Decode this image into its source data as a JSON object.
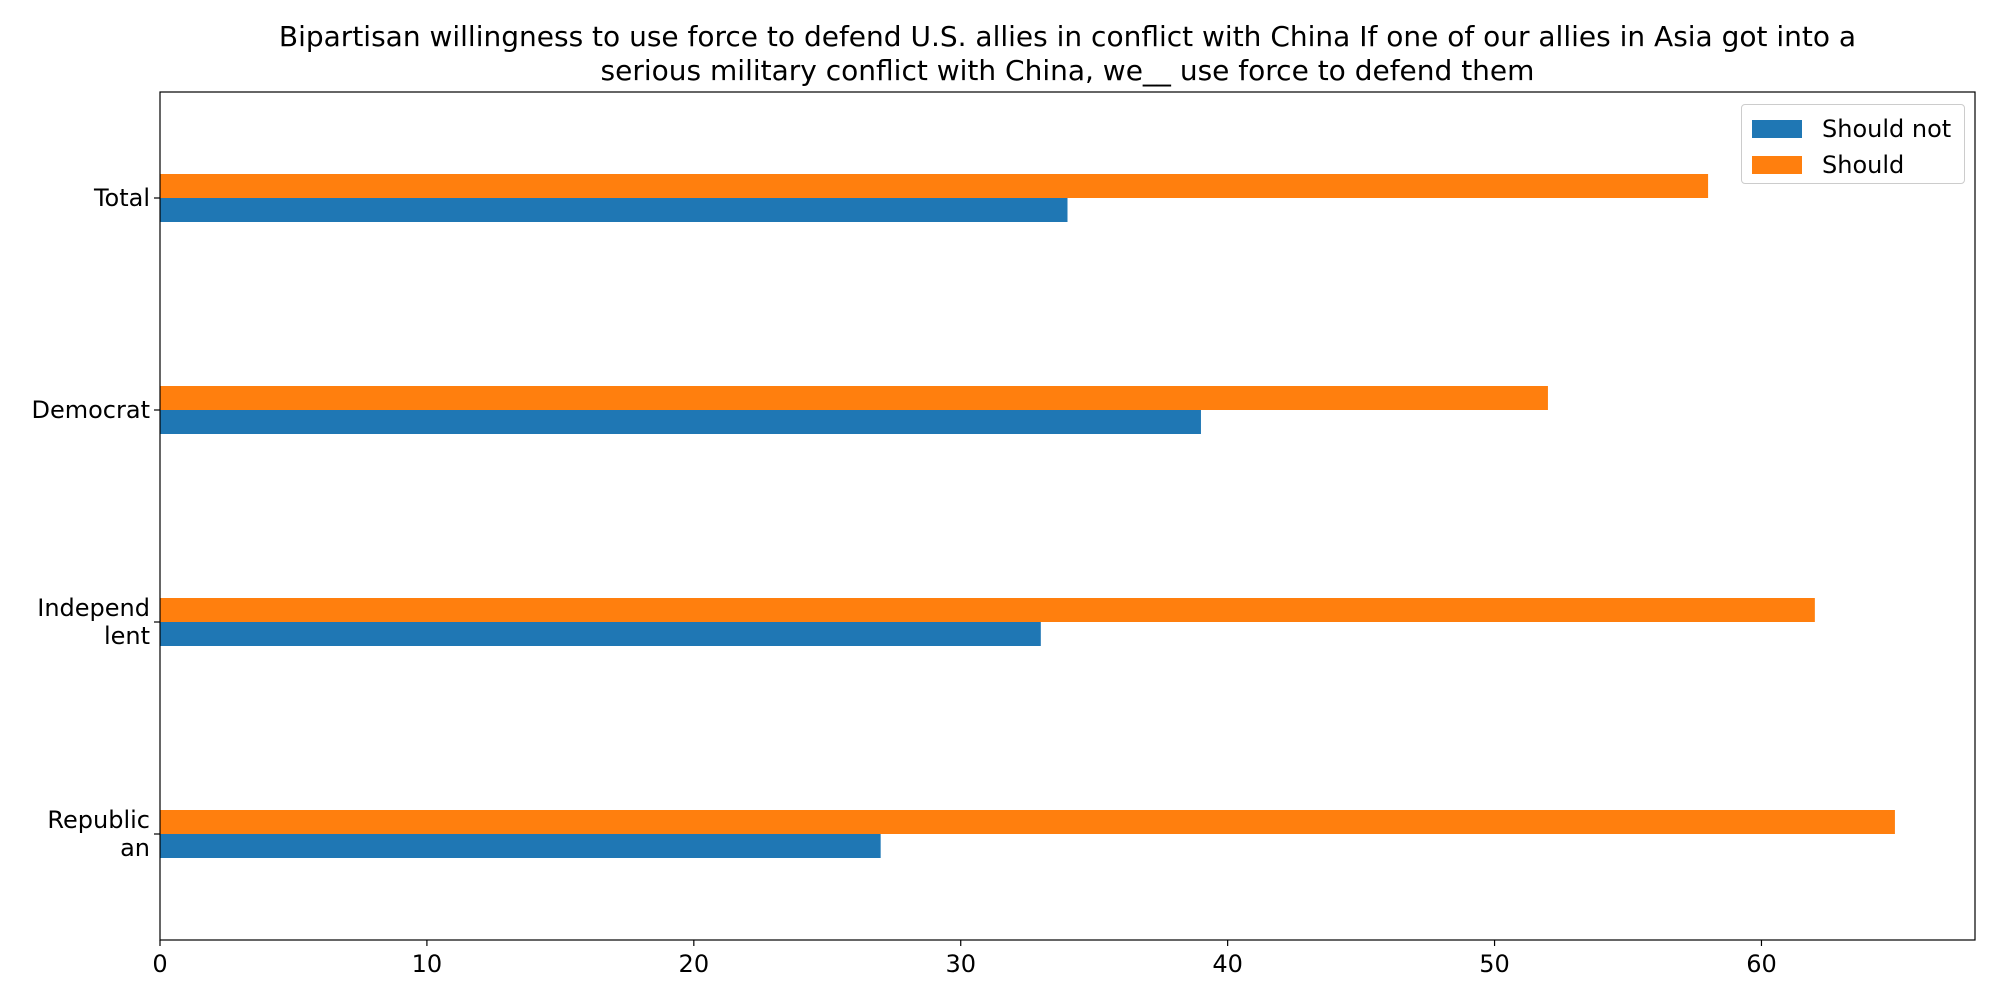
{
  "chart_data": {
    "type": "bar",
    "orientation": "horizontal",
    "title": "Bipartisan willingness to use force to defend U.S. allies in conflict with China If one of our allies in Asia got into a\nserious military conflict with China, we__ use force to defend them",
    "categories": [
      "Total",
      "Democrat",
      "Independ\nlent",
      "Republic\nan"
    ],
    "series": [
      {
        "name": "Should not",
        "color": "#1f77b4",
        "values": [
          34,
          39,
          33,
          27
        ]
      },
      {
        "name": "Should",
        "color": "#ff7f0e",
        "values": [
          58,
          52,
          62,
          65
        ]
      }
    ],
    "xlim": [
      0,
      68
    ],
    "xticks": [
      0,
      10,
      20,
      30,
      40,
      50,
      60
    ],
    "xlabel": "",
    "ylabel": "",
    "grid": false,
    "legend_position": "top-right"
  }
}
